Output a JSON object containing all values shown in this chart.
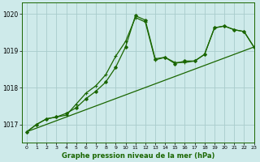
{
  "title": "Graphe pression niveau de la mer (hPa)",
  "bg_color": "#ceeaea",
  "grid_color": "#a8cccc",
  "line_color": "#1a6600",
  "xlim": [
    -0.5,
    23
  ],
  "ylim": [
    1016.5,
    1020.3
  ],
  "yticks": [
    1017,
    1018,
    1019,
    1020
  ],
  "xticks": [
    0,
    1,
    2,
    3,
    4,
    5,
    6,
    7,
    8,
    9,
    10,
    11,
    12,
    13,
    14,
    15,
    16,
    17,
    18,
    19,
    20,
    21,
    22,
    23
  ],
  "series1_x": [
    0,
    1,
    2,
    3,
    4,
    5,
    6,
    7,
    8,
    9,
    10,
    11,
    12,
    13,
    14,
    15,
    16,
    17,
    18,
    19,
    20,
    21,
    22,
    23
  ],
  "series1_y": [
    1016.8,
    1017.0,
    1017.15,
    1017.2,
    1017.25,
    1017.55,
    1017.85,
    1018.05,
    1018.35,
    1018.85,
    1019.25,
    1019.9,
    1019.78,
    1018.75,
    1018.82,
    1018.68,
    1018.68,
    1018.72,
    1018.9,
    1019.62,
    1019.67,
    1019.57,
    1019.52,
    1019.1
  ],
  "series2_x": [
    0,
    1,
    2,
    3,
    4,
    5,
    6,
    7,
    8,
    9,
    10,
    11,
    12,
    13,
    14,
    15,
    16,
    17,
    18,
    19,
    20,
    21,
    22,
    23
  ],
  "series2_y": [
    1016.8,
    1017.0,
    1017.15,
    1017.2,
    1017.3,
    1017.45,
    1017.7,
    1017.9,
    1018.15,
    1018.55,
    1019.1,
    1019.95,
    1019.83,
    1018.78,
    1018.82,
    1018.65,
    1018.72,
    1018.72,
    1018.9,
    1019.62,
    1019.67,
    1019.57,
    1019.52,
    1019.1
  ],
  "trend_x": [
    0,
    23
  ],
  "trend_y": [
    1016.8,
    1019.1
  ]
}
